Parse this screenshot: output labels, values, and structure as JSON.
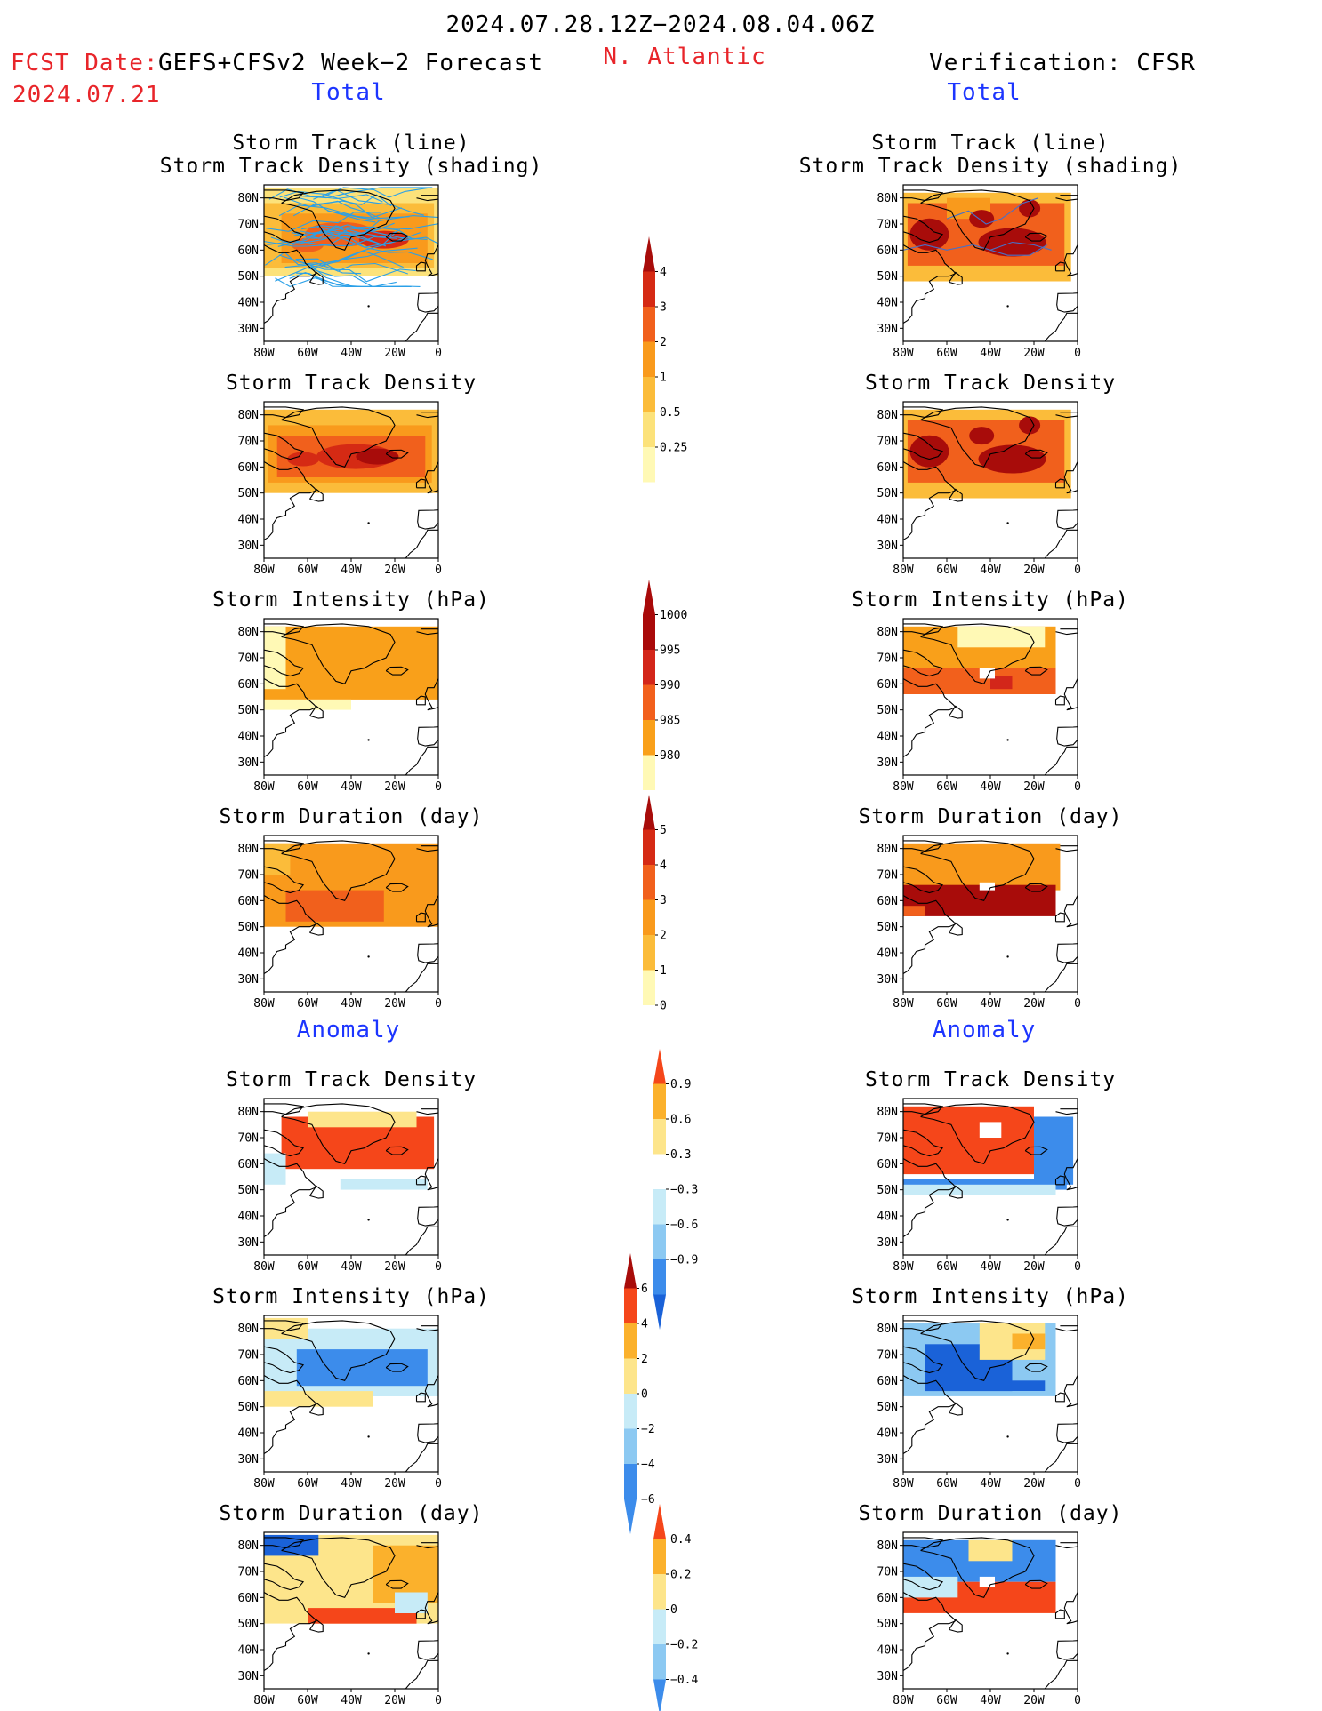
{
  "header": {
    "period": "2024.07.28.12Z−2024.08.04.06Z",
    "fcst_label": "FCST Date:",
    "fcst_model": "GEFS+CFSv2 Week−2 Forecast",
    "fcst_date": "2024.07.21",
    "region": "N. Atlantic",
    "verification": "Verification: CFSR"
  },
  "sections": {
    "total": "Total",
    "anomaly": "Anomaly"
  },
  "axes": {
    "lat_ticks": [
      "80N",
      "70N",
      "60N",
      "50N",
      "40N",
      "30N"
    ],
    "lon_ticks": [
      "80W",
      "60W",
      "40W",
      "20W",
      "0"
    ]
  },
  "colors": {
    "dens_025": "#fff9b5",
    "dens_05": "#fce27a",
    "dens_1": "#fbbc3a",
    "dens_2": "#f99a1c",
    "dens_3": "#f1601c",
    "dens_4": "#d52a14",
    "dens_max": "#a80c0a",
    "int_1000": "#fff9b5",
    "int_995": "#f9a01a",
    "int_990": "#f2601c",
    "int_985": "#d3261a",
    "int_980": "#a90a0a",
    "anom_pos1": "#fde58b",
    "anom_pos2": "#fbb12c",
    "anom_pos3": "#f5461a",
    "anom_neg1": "#c7ebf7",
    "anom_neg2": "#8cc9f2",
    "anom_neg3": "#3c8ceb",
    "anom_neg4": "#1a62d8",
    "track_line": "#2aa0e8",
    "obs_track": "#4870c8"
  },
  "chart_data": [
    {
      "type": "heatmap",
      "column": "GEFS+CFSv2 Week-2 Forecast",
      "section": "Total",
      "title": "Storm Track (line)\nStorm Track Density (shading)",
      "xlim": [
        -80,
        0
      ],
      "ylim": [
        25,
        85
      ],
      "cells": [
        [
          -50,
          65,
          4
        ],
        [
          -40,
          64,
          4
        ],
        [
          -30,
          63,
          4
        ],
        [
          -20,
          64,
          4
        ],
        [
          -45,
          70,
          3
        ],
        [
          -30,
          72,
          3
        ],
        [
          -60,
          68,
          3
        ],
        [
          -70,
          62,
          3
        ],
        [
          -60,
          55,
          2
        ],
        [
          -10,
          60,
          2
        ],
        [
          -15,
          72,
          2
        ],
        [
          -35,
          55,
          2
        ],
        [
          -75,
          75,
          2
        ]
      ],
      "colorbar": [
        0.25,
        0.5,
        1,
        2,
        3,
        4
      ]
    },
    {
      "type": "heatmap",
      "column": "Verification: CFSR",
      "section": "Total",
      "title": "Storm Track (line)\nStorm Track Density (shading)",
      "xlim": [
        -80,
        0
      ],
      "ylim": [
        25,
        85
      ],
      "cells": [
        [
          -70,
          70,
          4
        ],
        [
          -60,
          72,
          4
        ],
        [
          -40,
          66,
          4
        ],
        [
          -25,
          62,
          4
        ],
        [
          -20,
          68,
          4
        ],
        [
          -30,
          75,
          4
        ],
        [
          -55,
          62,
          3
        ],
        [
          -15,
          62,
          3
        ],
        [
          -50,
          78,
          3
        ]
      ],
      "colorbar": [
        0.25,
        0.5,
        1,
        2,
        3,
        4
      ]
    },
    {
      "type": "heatmap",
      "column": "GEFS+CFSv2 Week-2 Forecast",
      "section": "Total",
      "title": "Storm Track Density",
      "cells": [
        [
          -50,
          64,
          4
        ],
        [
          -35,
          63,
          4
        ],
        [
          -25,
          64,
          4
        ],
        [
          -65,
          62,
          3
        ],
        [
          -45,
          70,
          3
        ],
        [
          -30,
          72,
          3
        ],
        [
          -70,
          55,
          2
        ],
        [
          -15,
          58,
          2
        ]
      ]
    },
    {
      "type": "heatmap",
      "column": "Verification: CFSR",
      "section": "Total",
      "title": "Storm Track Density",
      "cells": [
        [
          -65,
          70,
          4
        ],
        [
          -55,
          72,
          4
        ],
        [
          -40,
          65,
          4
        ],
        [
          -25,
          62,
          4
        ],
        [
          -20,
          68,
          4
        ],
        [
          -30,
          75,
          3
        ],
        [
          -55,
          60,
          3
        ],
        [
          -15,
          58,
          3
        ]
      ]
    },
    {
      "type": "heatmap",
      "column": "GEFS+CFSv2 Week-2 Forecast",
      "section": "Total",
      "title": "Storm Intensity (hPa)",
      "colorbar": [
        1000,
        995,
        990,
        985,
        980
      ],
      "cells": [
        [
          -40,
          70,
          995
        ],
        [
          -60,
          60,
          995
        ],
        [
          -70,
          50,
          1000
        ]
      ]
    },
    {
      "type": "heatmap",
      "column": "Verification: CFSR",
      "section": "Total",
      "title": "Storm Intensity (hPa)",
      "cells": [
        [
          -35,
          60,
          985
        ],
        [
          -25,
          58,
          990
        ],
        [
          -45,
          75,
          1000
        ],
        [
          -60,
          65,
          995
        ]
      ]
    },
    {
      "type": "heatmap",
      "column": "GEFS+CFSv2 Week-2 Forecast",
      "section": "Total",
      "title": "Storm Duration (day)",
      "colorbar": [
        0,
        1,
        2,
        3,
        4,
        5
      ],
      "cells": [
        [
          -40,
          72,
          3
        ],
        [
          -50,
          57,
          4
        ],
        [
          -20,
          57,
          4
        ]
      ]
    },
    {
      "type": "heatmap",
      "column": "Verification: CFSR",
      "section": "Total",
      "title": "Storm Duration (day)",
      "cells": [
        [
          -40,
          60,
          5
        ],
        [
          -30,
          73,
          3
        ],
        [
          -65,
          70,
          4
        ]
      ]
    },
    {
      "type": "heatmap",
      "column": "GEFS+CFSv2 Week-2 Forecast",
      "section": "Anomaly",
      "title": "Storm Track Density",
      "colorbar": [
        -0.9,
        -0.6,
        -0.3,
        0.3,
        0.6,
        0.9
      ],
      "cells": [
        [
          -40,
          65,
          0.9
        ],
        [
          -25,
          70,
          0.9
        ],
        [
          -60,
          75,
          0.3
        ],
        [
          -30,
          52,
          -0.3
        ]
      ]
    },
    {
      "type": "heatmap",
      "column": "Verification: CFSR",
      "section": "Anomaly",
      "title": "Storm Track Density",
      "cells": [
        [
          -45,
          70,
          0.9
        ],
        [
          -30,
          62,
          0.9
        ],
        [
          -40,
          52,
          -0.6
        ],
        [
          -10,
          60,
          -0.6
        ]
      ]
    },
    {
      "type": "heatmap",
      "column": "GEFS+CFSv2 Week-2 Forecast",
      "section": "Anomaly",
      "title": "Storm Intensity (hPa)",
      "colorbar": [
        -6,
        -4,
        -2,
        0,
        2,
        4,
        6
      ],
      "cells": [
        [
          -40,
          66,
          -4
        ],
        [
          -20,
          68,
          -2
        ],
        [
          -70,
          55,
          2
        ]
      ]
    },
    {
      "type": "heatmap",
      "column": "Verification: CFSR",
      "section": "Anomaly",
      "title": "Storm Intensity (hPa)",
      "cells": [
        [
          -55,
          66,
          -6
        ],
        [
          -30,
          60,
          -6
        ],
        [
          -30,
          75,
          2
        ]
      ]
    },
    {
      "type": "heatmap",
      "column": "GEFS+CFSv2 Week-2 Forecast",
      "section": "Anomaly",
      "title": "Storm Duration (day)",
      "colorbar": [
        -0.4,
        -0.2,
        0,
        0.2,
        0.4
      ],
      "cells": [
        [
          -65,
          80,
          -0.4
        ],
        [
          -45,
          70,
          0.2
        ],
        [
          -25,
          72,
          0.4
        ],
        [
          -40,
          52,
          0.4
        ]
      ]
    },
    {
      "type": "heatmap",
      "column": "Verification: CFSR",
      "section": "Anomaly",
      "title": "Storm Duration (day)",
      "cells": [
        [
          -35,
          58,
          0.4
        ],
        [
          -50,
          78,
          -0.4
        ],
        [
          -20,
          72,
          -0.4
        ]
      ]
    }
  ]
}
